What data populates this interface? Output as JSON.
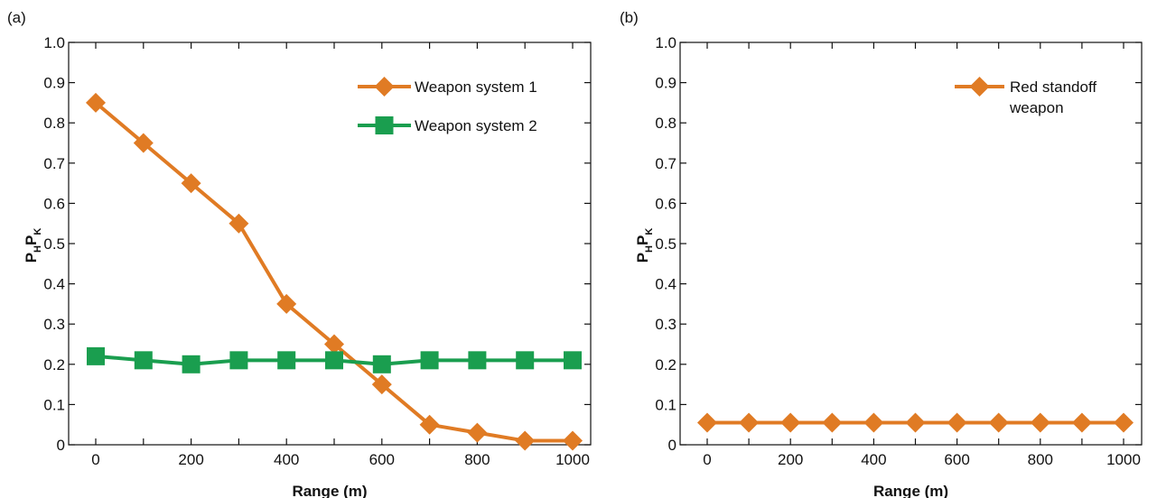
{
  "chart_data": [
    {
      "type": "line",
      "panel_label": "(a)",
      "xlabel": "Range (m)",
      "ylabel_main": "P",
      "ylabel_sub1": "H",
      "ylabel_mid": "P",
      "ylabel_sub2": "K",
      "xlim": [
        0,
        1000
      ],
      "ylim": [
        0,
        1.0
      ],
      "x": [
        0,
        100,
        200,
        300,
        400,
        500,
        600,
        700,
        800,
        900,
        1000
      ],
      "xticks": [
        "0",
        "200",
        "400",
        "600",
        "800",
        "1000"
      ],
      "yticks": [
        "0",
        "0.1",
        "0.2",
        "0.3",
        "0.4",
        "0.5",
        "0.6",
        "0.7",
        "0.8",
        "0.9",
        "1.0"
      ],
      "legend_position": "top-right",
      "series": [
        {
          "name": "Weapon system 1",
          "marker": "diamond",
          "color": "#E07B24",
          "values": [
            0.85,
            0.75,
            0.65,
            0.55,
            0.35,
            0.25,
            0.15,
            0.05,
            0.03,
            0.01,
            0.01
          ]
        },
        {
          "name": "Weapon system 2",
          "marker": "square",
          "color": "#1A9E4F",
          "values": [
            0.22,
            0.21,
            0.2,
            0.21,
            0.21,
            0.21,
            0.2,
            0.21,
            0.21,
            0.21,
            0.21
          ]
        }
      ]
    },
    {
      "type": "line",
      "panel_label": "(b)",
      "xlabel": "Range (m)",
      "ylabel_main": "P",
      "ylabel_sub1": "H",
      "ylabel_mid": "P",
      "ylabel_sub2": "K",
      "xlim": [
        0,
        1000
      ],
      "ylim": [
        0,
        1.0
      ],
      "x": [
        0,
        100,
        200,
        300,
        400,
        500,
        600,
        700,
        800,
        900,
        1000
      ],
      "xticks": [
        "0",
        "200",
        "400",
        "600",
        "800",
        "1000"
      ],
      "yticks": [
        "0",
        "0.1",
        "0.2",
        "0.3",
        "0.4",
        "0.5",
        "0.6",
        "0.7",
        "0.8",
        "0.9",
        "1.0"
      ],
      "legend_position": "top-right",
      "series": [
        {
          "name": "Red standoff weapon",
          "name_lines": [
            "Red standoff",
            "weapon"
          ],
          "marker": "diamond",
          "color": "#E07B24",
          "values": [
            0.055,
            0.055,
            0.055,
            0.055,
            0.055,
            0.055,
            0.055,
            0.055,
            0.055,
            0.055,
            0.055
          ]
        }
      ]
    }
  ]
}
